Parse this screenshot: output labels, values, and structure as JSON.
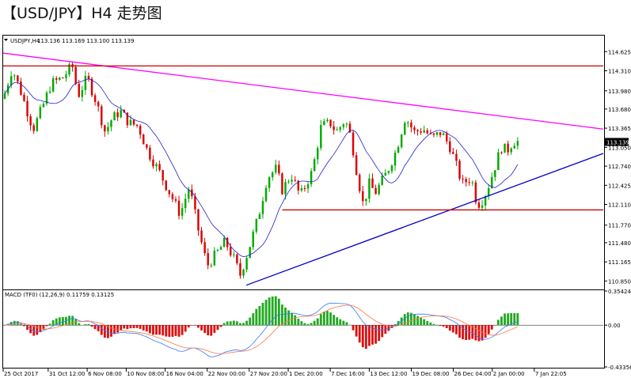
{
  "title": "【USD/JPY】H4 走势图",
  "chart_data": [
    {
      "type": "candlestick",
      "symbol_info": "USDJPY,H4",
      "ohlc_readout": "113.136 113.169 113.100 113.139",
      "y_ticks": [
        "114.625",
        "114.310",
        "113.980",
        "113.680",
        "113.365",
        "113.050",
        "112.740",
        "112.425",
        "112.110",
        "111.770",
        "111.480",
        "111.165",
        "110.850"
      ],
      "ylim": [
        110.75,
        114.85
      ],
      "last_price": "113.139",
      "last_price_color": "#000000",
      "x_ticks": [
        "25 Oct 2017",
        "31 Oct 12:00",
        "6 Nov 08:00",
        "10 Nov 08:00",
        "16 Nov 04:00",
        "22 Nov 00:00",
        "27 Nov 20:00",
        "1 Dec 20:00",
        "7 Dec 16:00",
        "13 Dec 12:00",
        "19 Dec 08:00",
        "26 Dec 04:00",
        "2 Jan 00:00",
        "7 Jan 22:05"
      ],
      "x_tick_fractions": [
        0.0,
        0.075,
        0.14,
        0.205,
        0.27,
        0.34,
        0.41,
        0.475,
        0.545,
        0.61,
        0.68,
        0.75,
        0.815,
        0.885
      ],
      "price_path": [
        [
          0,
          113.85
        ],
        [
          0.015,
          114.35
        ],
        [
          0.03,
          113.95
        ],
        [
          0.05,
          113.35
        ],
        [
          0.065,
          113.7
        ],
        [
          0.08,
          114.1
        ],
        [
          0.1,
          114.2
        ],
        [
          0.115,
          114.4
        ],
        [
          0.125,
          113.9
        ],
        [
          0.14,
          114.2
        ],
        [
          0.155,
          113.8
        ],
        [
          0.17,
          113.3
        ],
        [
          0.18,
          113.5
        ],
        [
          0.195,
          113.65
        ],
        [
          0.21,
          113.45
        ],
        [
          0.225,
          113.4
        ],
        [
          0.24,
          113.0
        ],
        [
          0.26,
          112.65
        ],
        [
          0.28,
          112.25
        ],
        [
          0.295,
          111.95
        ],
        [
          0.31,
          112.4
        ],
        [
          0.325,
          111.7
        ],
        [
          0.34,
          111.1
        ],
        [
          0.355,
          111.3
        ],
        [
          0.37,
          111.5
        ],
        [
          0.385,
          111.2
        ],
        [
          0.395,
          110.95
        ],
        [
          0.41,
          111.4
        ],
        [
          0.425,
          111.9
        ],
        [
          0.44,
          112.55
        ],
        [
          0.455,
          112.7
        ],
        [
          0.465,
          112.35
        ],
        [
          0.48,
          112.6
        ],
        [
          0.495,
          112.25
        ],
        [
          0.505,
          112.45
        ],
        [
          0.515,
          112.65
        ],
        [
          0.53,
          113.4
        ],
        [
          0.545,
          113.45
        ],
        [
          0.555,
          113.3
        ],
        [
          0.57,
          113.5
        ],
        [
          0.58,
          113.2
        ],
        [
          0.59,
          112.6
        ],
        [
          0.6,
          112.1
        ],
        [
          0.61,
          112.45
        ],
        [
          0.62,
          112.3
        ],
        [
          0.64,
          112.65
        ],
        [
          0.655,
          113.0
        ],
        [
          0.67,
          113.55
        ],
        [
          0.685,
          113.3
        ],
        [
          0.7,
          113.35
        ],
        [
          0.715,
          113.2
        ],
        [
          0.73,
          113.3
        ],
        [
          0.745,
          113.05
        ],
        [
          0.755,
          112.75
        ],
        [
          0.765,
          112.45
        ],
        [
          0.78,
          112.55
        ],
        [
          0.79,
          112.1
        ],
        [
          0.8,
          112.2
        ],
        [
          0.81,
          112.45
        ],
        [
          0.82,
          112.75
        ],
        [
          0.83,
          113.05
        ],
        [
          0.84,
          113.0
        ],
        [
          0.85,
          113.15
        ],
        [
          0.86,
          113.14
        ]
      ],
      "lines": [
        {
          "kind": "trendline",
          "color": "#ff00ff",
          "from": [
            0.0,
            114.6
          ],
          "to": [
            1.0,
            113.35
          ]
        },
        {
          "kind": "trendline",
          "color": "#0000cc",
          "from": [
            0.405,
            110.78
          ],
          "to": [
            1.0,
            112.95
          ]
        },
        {
          "kind": "horizontal",
          "color": "#cc0000",
          "price": 114.39,
          "from_x": 0.0,
          "to_x": 1.0
        },
        {
          "kind": "horizontal",
          "color": "#cc0000",
          "price": 112.02,
          "from_x": 0.465,
          "to_x": 1.0
        }
      ],
      "moving_average_color": "#2020cc",
      "up_color": "#00aa00",
      "down_color": "#dd0000",
      "grid": false
    },
    {
      "type": "macd",
      "label": "MACD (TF0) (12,26,9) 0.11759 0.13125",
      "y_ticks": [
        "0.35424",
        "0.00",
        "-0.43356"
      ],
      "ylim": [
        -0.43356,
        0.35424
      ],
      "histogram_color_up": "#22aa22",
      "histogram_color_down": "#dd1111",
      "signal_colors": [
        "#3377ff",
        "#ff7744"
      ]
    }
  ]
}
